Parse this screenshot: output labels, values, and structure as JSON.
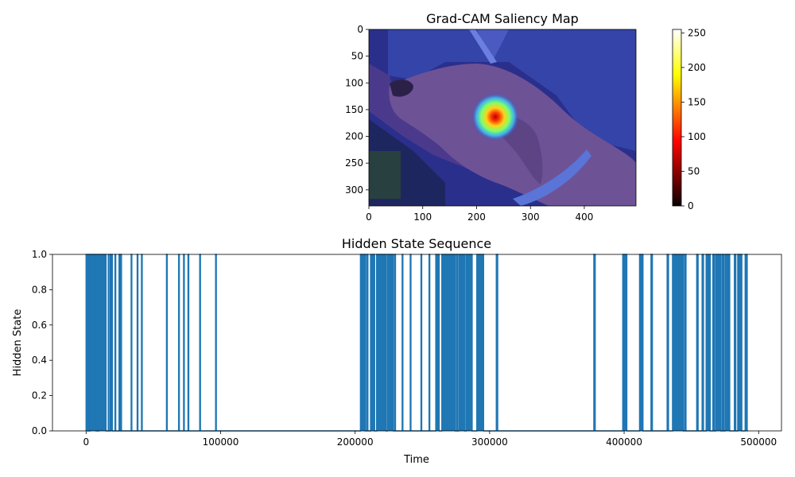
{
  "chart_data": [
    {
      "type": "heatmap",
      "title": "Grad-CAM Saliency Map",
      "xlim": [
        0,
        496
      ],
      "ylim": [
        330,
        0
      ],
      "xticks": [
        0,
        100,
        200,
        300,
        400
      ],
      "yticks": [
        0,
        50,
        100,
        150,
        200,
        250,
        300
      ],
      "hotspot": {
        "x": 235,
        "y": 163,
        "peak": 255
      },
      "colorbar": {
        "range": [
          0,
          255
        ],
        "ticks": [
          0,
          50,
          100,
          150,
          200,
          250
        ],
        "colormap": "hot"
      }
    },
    {
      "type": "line",
      "title": "Hidden State Sequence",
      "xlabel": "Time",
      "ylabel": "Hidden State",
      "xlim": [
        -25000,
        517000
      ],
      "ylim": [
        0,
        1
      ],
      "xticks": [
        0,
        100000,
        200000,
        300000,
        400000,
        500000
      ],
      "yticks": [
        0.0,
        0.2,
        0.4,
        0.6,
        0.8,
        1.0
      ],
      "color": "#1f77b4",
      "x_end": 492000,
      "high_intervals": [
        [
          0,
          1000
        ],
        [
          1800,
          2300
        ],
        [
          3000,
          7500
        ],
        [
          8200,
          8700
        ],
        [
          9500,
          14800
        ],
        [
          16500,
          17000
        ],
        [
          18000,
          19500
        ],
        [
          21500,
          22000
        ],
        [
          24500,
          25000
        ],
        [
          25800,
          26300
        ],
        [
          33500,
          34000
        ],
        [
          38000,
          38500
        ],
        [
          41200,
          41700
        ],
        [
          59800,
          60300
        ],
        [
          68800,
          69300
        ],
        [
          72500,
          73000
        ],
        [
          75800,
          76300
        ],
        [
          84500,
          85000
        ],
        [
          96300,
          96800
        ],
        [
          204000,
          207500
        ],
        [
          208500,
          209500
        ],
        [
          211500,
          214500
        ],
        [
          216000,
          223000
        ],
        [
          224000,
          228500
        ],
        [
          229500,
          230000
        ],
        [
          235000,
          235500
        ],
        [
          241000,
          241500
        ],
        [
          249000,
          249500
        ],
        [
          255000,
          255500
        ],
        [
          260000,
          262500
        ],
        [
          264500,
          274500
        ],
        [
          275500,
          276000
        ],
        [
          277000,
          281500
        ],
        [
          282500,
          287000
        ],
        [
          290500,
          295500
        ],
        [
          305000,
          306000
        ],
        [
          377500,
          378500
        ],
        [
          399000,
          402000
        ],
        [
          411500,
          414000
        ],
        [
          420000,
          421000
        ],
        [
          432000,
          433000
        ],
        [
          436000,
          444000
        ],
        [
          445000,
          446000
        ],
        [
          454000,
          455000
        ],
        [
          458000,
          459000
        ],
        [
          461000,
          464000
        ],
        [
          466000,
          467000
        ],
        [
          468000,
          472000
        ],
        [
          473000,
          474000
        ],
        [
          475000,
          478500
        ],
        [
          482000,
          483000
        ],
        [
          484500,
          487500
        ],
        [
          490000,
          491500
        ]
      ]
    }
  ]
}
